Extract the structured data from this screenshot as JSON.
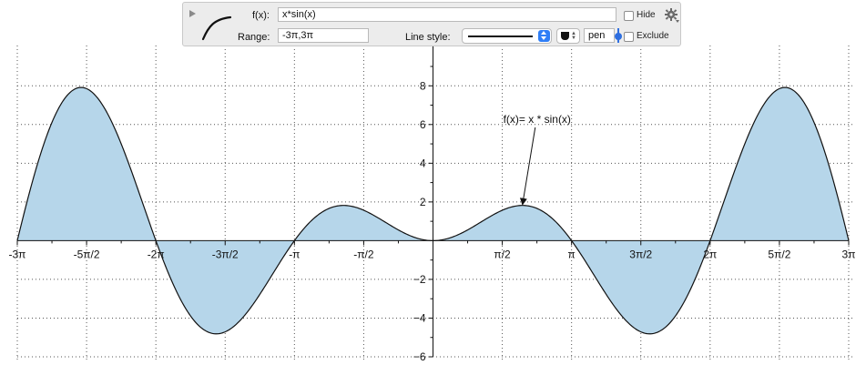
{
  "toolbar": {
    "function_label": "f(x):",
    "function_value": "x*sin(x)",
    "range_label": "Range:",
    "range_value": "-3π,3π",
    "line_style_label": "Line style:",
    "pen_value": "pen",
    "hide_label": "Hide",
    "exclude_label": "Exclude",
    "hide_checked": false,
    "exclude_checked": false,
    "icons": [
      "disclosure-triangle-icon",
      "curve-icon",
      "gear-icon"
    ]
  },
  "chart_data": {
    "type": "area",
    "function": "x*sin(x)",
    "x_range": [
      -9.42478,
      9.42478
    ],
    "ylim": [
      -6,
      9
    ],
    "x_tick_values": [
      -9.42478,
      -7.85398,
      -6.28319,
      -4.71239,
      -3.14159,
      -1.5708,
      1.5708,
      3.14159,
      4.71239,
      6.28319,
      7.85398,
      9.42478
    ],
    "x_tick_labels": [
      "-3π",
      "-5π/2",
      "-2π",
      "-3π/2",
      "-π",
      "-π/2",
      "π/2",
      "π",
      "3π/2",
      "2π",
      "5π/2",
      "3π"
    ],
    "y_tick_values": [
      -6,
      -4,
      -2,
      2,
      4,
      6,
      8
    ],
    "y_tick_labels": [
      "−6",
      "−4",
      "−2",
      "2",
      "4",
      "6",
      "8"
    ],
    "grid": true,
    "fill_color": "#b6d6ea",
    "line_color": "#111111",
    "annotation": {
      "text": "f(x)= x * sin(x)",
      "arrow_target_x": 2.0288,
      "arrow_target_y": 1.8197
    }
  }
}
